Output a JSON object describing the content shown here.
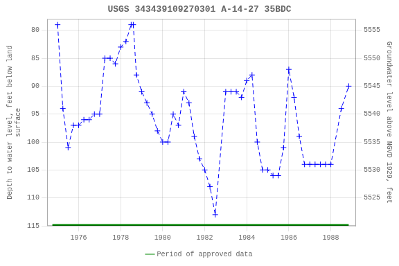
{
  "chart_data": {
    "type": "line",
    "title": "USGS 343439109270301 A-14-27 35BDC",
    "ylabel": "Depth to water level, feet below land\nsurface",
    "y2label": "Groundwater level above NGVD 1929, feet",
    "xlim": [
      1974.5,
      1989.2
    ],
    "xticks": [
      1976,
      1978,
      1980,
      1982,
      1984,
      1986,
      1988
    ],
    "ylim": [
      115,
      78
    ],
    "yticks": [
      80,
      85,
      90,
      95,
      100,
      105,
      110,
      115
    ],
    "y2lim": [
      5520,
      5557
    ],
    "y2ticks": [
      5555,
      5550,
      5545,
      5540,
      5535,
      5530,
      5525
    ],
    "grid": true,
    "legend": "bottom",
    "series": [
      {
        "x": [
          1975.0,
          1975.25,
          1975.5,
          1975.75,
          1976.0,
          1976.25,
          1976.5,
          1976.75,
          1977.0,
          1977.25,
          1977.5,
          1977.75,
          1978.0,
          1978.25,
          1978.5,
          1978.6,
          1978.75,
          1979.0,
          1979.25,
          1979.5,
          1979.75,
          1980.0,
          1980.25,
          1980.5,
          1980.75,
          1981.0,
          1981.25,
          1981.5,
          1981.75,
          1982.0,
          1982.25,
          1982.5,
          1983.0,
          1983.25,
          1983.5,
          1983.75,
          1984.0,
          1984.25,
          1984.5,
          1984.75,
          1985.0,
          1985.25,
          1985.5,
          1985.75,
          1986.0,
          1986.25,
          1986.5,
          1986.75,
          1987.0,
          1987.25,
          1987.5,
          1987.75,
          1988.0,
          1988.5,
          1988.85
        ],
        "values": [
          79,
          94,
          101,
          97,
          97,
          96,
          96,
          95,
          95,
          85,
          85,
          86,
          83,
          82,
          79,
          79,
          88,
          91,
          93,
          95,
          98,
          100,
          100,
          95,
          97,
          91,
          93,
          99,
          103,
          105,
          108,
          113,
          91,
          91,
          91,
          92,
          89,
          88,
          100,
          105,
          105,
          106,
          106,
          101,
          87,
          92,
          99,
          104,
          104,
          104,
          104,
          104,
          104,
          94,
          90
        ],
        "color": "#0000ff",
        "line_style": "dashed",
        "marker": "+"
      },
      {
        "name": "Period of approved data",
        "x": [
          1974.75,
          1988.85
        ],
        "values": [
          115,
          115
        ],
        "color": "#008800",
        "line_style": "solid"
      }
    ]
  }
}
